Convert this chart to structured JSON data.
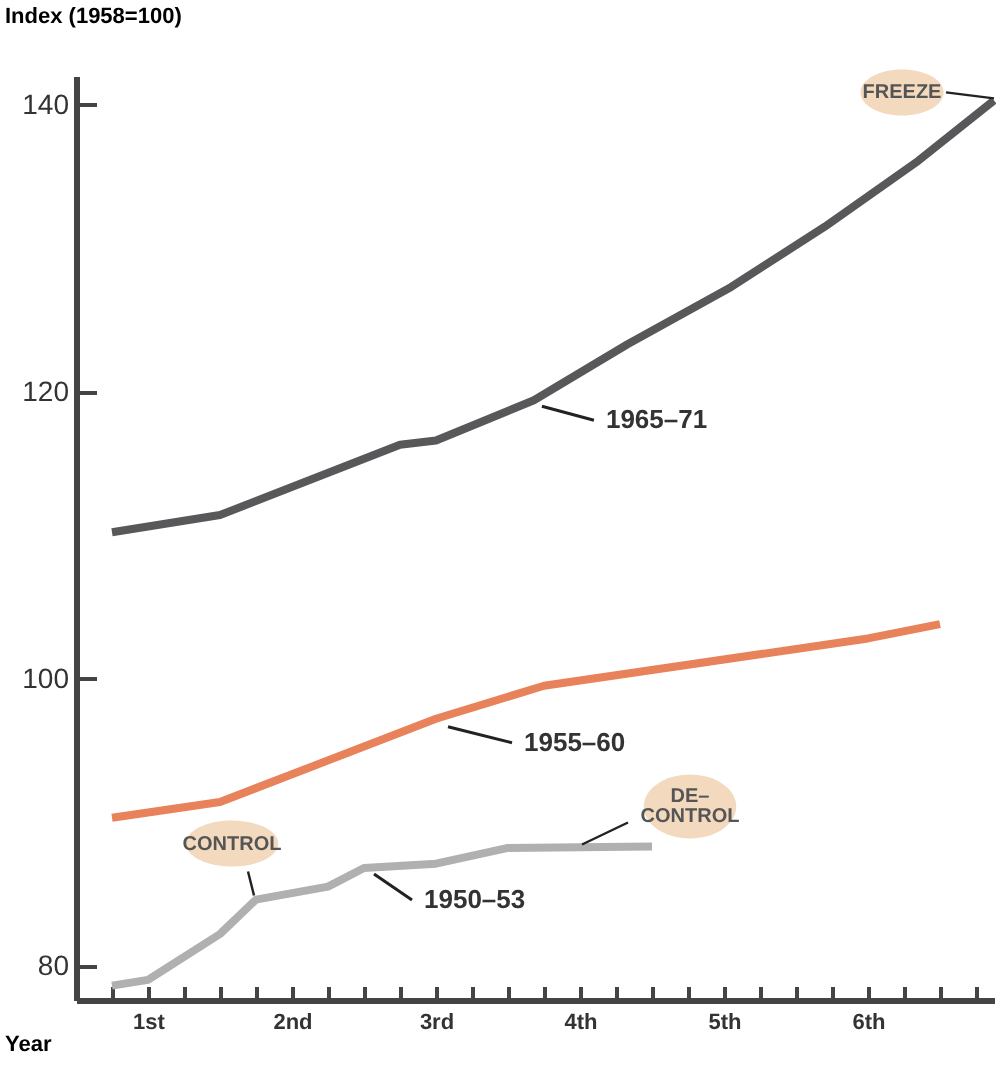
{
  "chart_data": {
    "type": "line",
    "ylabel": "Index (1958=100)",
    "xlabel": "Year",
    "xlim": [
      0.5,
      6.875
    ],
    "ylim": [
      77.6,
      142
    ],
    "xticks": [
      {
        "value": 0.75,
        "label": null
      },
      {
        "value": 1,
        "label": "1st"
      },
      {
        "value": 1.25,
        "label": null
      },
      {
        "value": 1.5,
        "label": null
      },
      {
        "value": 1.75,
        "label": null
      },
      {
        "value": 2,
        "label": "2nd"
      },
      {
        "value": 2.25,
        "label": null
      },
      {
        "value": 2.5,
        "label": null
      },
      {
        "value": 2.75,
        "label": null
      },
      {
        "value": 3,
        "label": "3rd"
      },
      {
        "value": 3.25,
        "label": null
      },
      {
        "value": 3.5,
        "label": null
      },
      {
        "value": 3.75,
        "label": null
      },
      {
        "value": 4,
        "label": "4th"
      },
      {
        "value": 4.25,
        "label": null
      },
      {
        "value": 4.5,
        "label": null
      },
      {
        "value": 4.75,
        "label": null
      },
      {
        "value": 5,
        "label": "5th"
      },
      {
        "value": 5.25,
        "label": null
      },
      {
        "value": 5.5,
        "label": null
      },
      {
        "value": 5.75,
        "label": null
      },
      {
        "value": 6,
        "label": "6th"
      },
      {
        "value": 6.25,
        "label": null
      },
      {
        "value": 6.5,
        "label": null
      },
      {
        "value": 6.75,
        "label": null
      }
    ],
    "yticks": [
      80,
      100,
      120,
      140
    ],
    "marker": "none",
    "line_style": "solid",
    "series": [
      {
        "name": "1965–71",
        "color": "#58585a",
        "x": [
          0.75,
          1.5,
          2.75,
          3,
          3.68,
          4.33,
          5.05,
          5.7,
          6.35,
          6.875
        ],
        "values": [
          110.2,
          111.4,
          116.3,
          116.6,
          119.4,
          123.3,
          127.3,
          131.5,
          136.1,
          140.3
        ]
      },
      {
        "name": "1955–60",
        "color": "#e8825a",
        "x": [
          0.75,
          1.5,
          3,
          3.75,
          6,
          6.5
        ],
        "values": [
          90.3,
          91.4,
          97.2,
          99.5,
          102.8,
          103.8
        ]
      },
      {
        "name": "1950–53",
        "color": "#b0b0b0",
        "x": [
          0.75,
          1,
          1.5,
          1.75,
          2.25,
          2.5,
          3,
          3.5,
          4.5
        ],
        "values": [
          78.6,
          79.0,
          82.2,
          84.6,
          85.5,
          86.8,
          87.1,
          88.2,
          88.3
        ]
      }
    ],
    "annotations": [
      {
        "text": "FREEZE",
        "x": 6.875,
        "y": 140.3
      },
      {
        "text": "CONTROL",
        "x": 1.75,
        "y": 84.6
      },
      {
        "text": "DE–\nCONTROL",
        "x": 4,
        "y": 88.3
      }
    ]
  }
}
